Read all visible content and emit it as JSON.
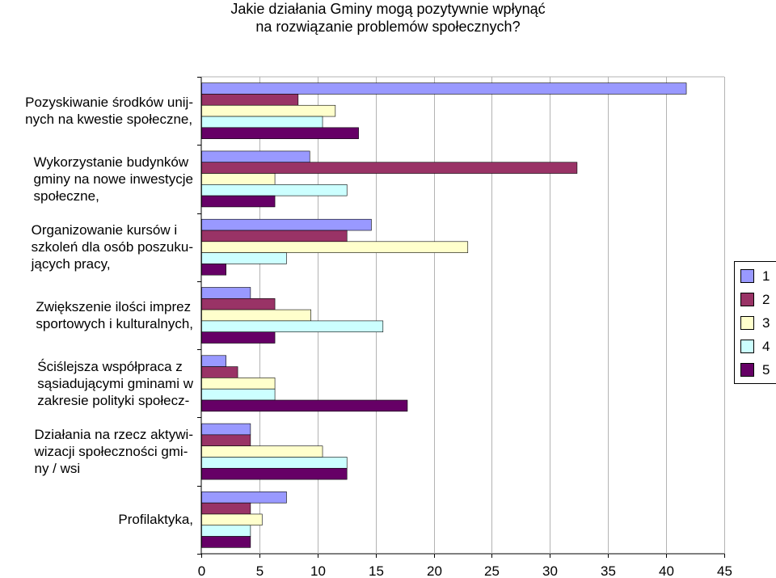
{
  "chart_data": {
    "type": "bar",
    "orientation": "horizontal",
    "title": [
      "Jakie działania Gminy mogą pozytywnie wpłynąć",
      "na rozwiązanie problemów społecznych?"
    ],
    "categories": [
      "Pozyskiwanie środków unij-\nnych na kwestie społeczne,",
      "Wykorzystanie budynków\ngminy na nowe inwestycje\nspołeczne,",
      "Organizowanie kursów i\nszkoleń dla osób poszuku-\njących pracy,",
      "Zwiększenie ilości imprez\nsportowych i kulturalnych,",
      "Ściślejsza współpraca z\nsąsiadującymi gminami w\nzakresie polityki społecz-",
      "Działania na rzecz aktywi-\nwizacji społeczności gmi-\nny / wsi",
      "Profilaktyka,"
    ],
    "series": [
      {
        "name": "1",
        "color": "#9999ff",
        "values": [
          41.7,
          9.3,
          14.6,
          4.2,
          2.1,
          4.2,
          7.3
        ]
      },
      {
        "name": "2",
        "color": "#993366",
        "values": [
          8.3,
          32.3,
          12.5,
          6.3,
          3.1,
          4.2,
          4.2
        ]
      },
      {
        "name": "3",
        "color": "#ffffcc",
        "values": [
          11.5,
          6.3,
          22.9,
          9.4,
          6.3,
          10.4,
          5.2
        ]
      },
      {
        "name": "4",
        "color": "#ccffff",
        "values": [
          10.4,
          12.5,
          7.3,
          15.6,
          6.3,
          12.5,
          4.2
        ]
      },
      {
        "name": "5",
        "color": "#660066",
        "values": [
          13.5,
          6.3,
          2.1,
          6.3,
          17.7,
          12.5,
          4.2
        ]
      }
    ],
    "xlim": [
      0,
      45
    ],
    "xticks": [
      "0",
      "5",
      "10",
      "15",
      "20",
      "25",
      "30",
      "35",
      "40",
      "45"
    ],
    "xlabel": "",
    "ylabel": "",
    "grid": true,
    "legend_position": "right"
  }
}
